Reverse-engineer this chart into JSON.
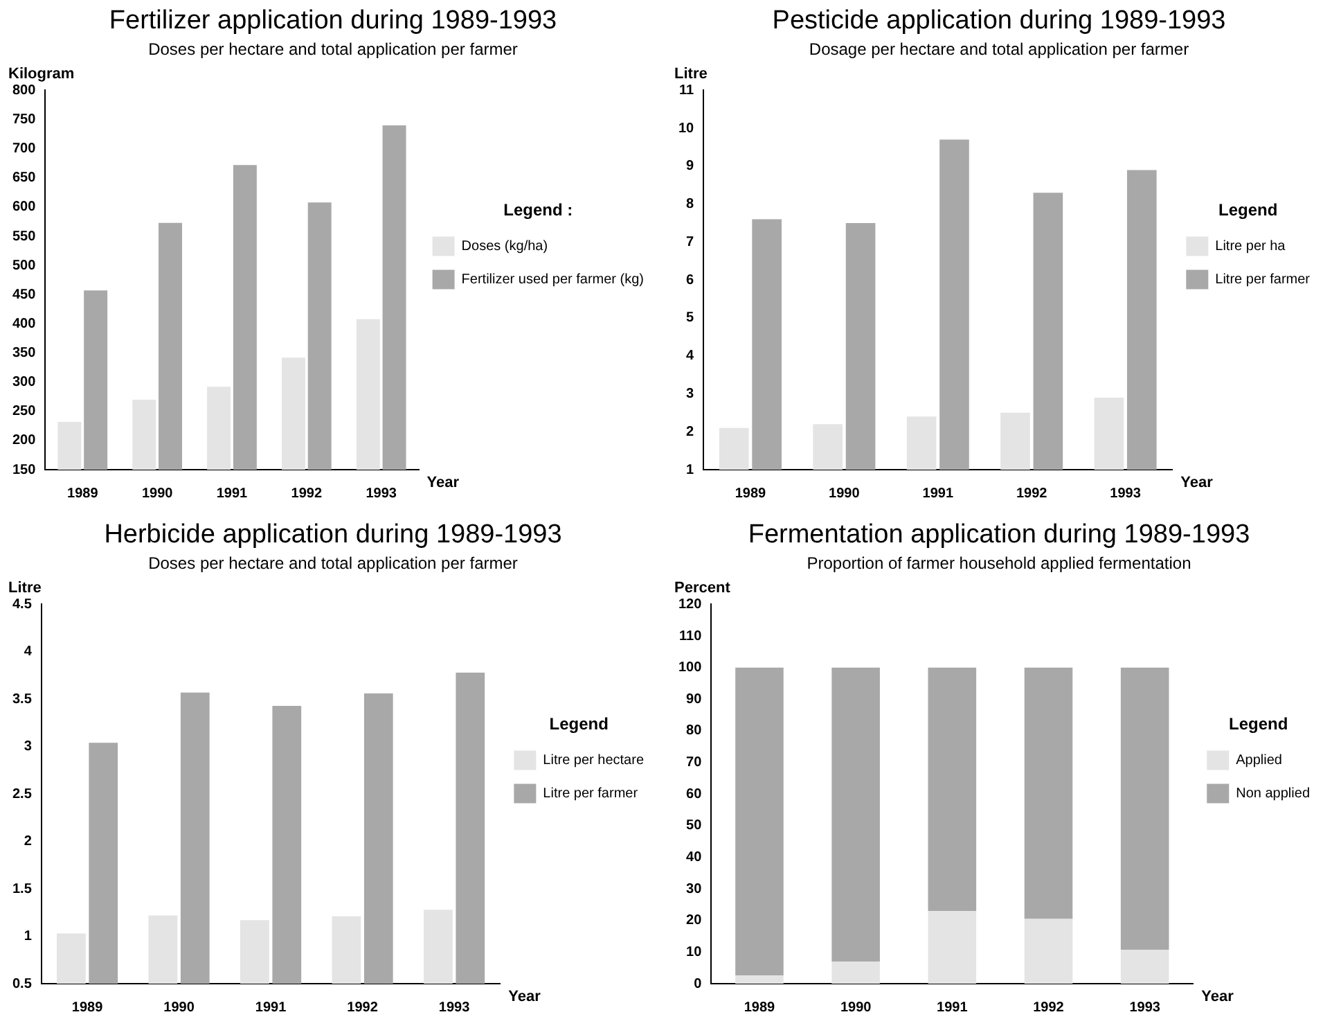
{
  "chart_data": [
    {
      "type": "bar",
      "title": "Fertilizer application during 1989-1993",
      "subtitle": "Doses per hectare and total application per farmer",
      "xlabel": "Year",
      "ylabel": "Kilogram",
      "legend_title": "Legend :",
      "legend": "right",
      "categories": [
        "1989",
        "1990",
        "1991",
        "1992",
        "1993"
      ],
      "series": [
        {
          "name": "Doses (kg/ha)",
          "color": "#e4e4e4",
          "values": [
            232,
            270,
            292,
            342,
            408
          ]
        },
        {
          "name": "Fertilizer used per farmer (kg)",
          "color": "#a8a8a8",
          "values": [
            457,
            573,
            672,
            608,
            740
          ]
        }
      ],
      "ylim": [
        150,
        800
      ],
      "yticks": [
        150,
        200,
        250,
        300,
        350,
        400,
        450,
        500,
        550,
        600,
        650,
        700,
        750,
        800
      ]
    },
    {
      "type": "bar",
      "title": "Pesticide application during 1989-1993",
      "subtitle": "Dosage per hectare and total application per farmer",
      "xlabel": "Year",
      "ylabel": "Litre",
      "legend_title": "Legend",
      "legend": "right",
      "categories": [
        "1989",
        "1990",
        "1991",
        "1992",
        "1993"
      ],
      "series": [
        {
          "name": "Litre per ha",
          "color": "#e4e4e4",
          "values": [
            2.1,
            2.2,
            2.4,
            2.5,
            2.9
          ]
        },
        {
          "name": "Litre per farmer",
          "color": "#a8a8a8",
          "values": [
            7.6,
            7.5,
            9.7,
            8.3,
            8.9
          ]
        }
      ],
      "ylim": [
        1,
        11
      ],
      "yticks": [
        1,
        2,
        3,
        4,
        5,
        6,
        7,
        8,
        9,
        10,
        11
      ]
    },
    {
      "type": "bar",
      "title": "Herbicide application during 1989-1993",
      "subtitle": "Doses per hectare and total application per farmer",
      "xlabel": "Year",
      "ylabel": "Litre",
      "legend_title": "Legend",
      "legend": "right",
      "categories": [
        "1989",
        "1990",
        "1991",
        "1992",
        "1993"
      ],
      "series": [
        {
          "name": "Litre per hectare",
          "color": "#e4e4e4",
          "values": [
            1.03,
            1.22,
            1.17,
            1.21,
            1.28
          ]
        },
        {
          "name": "Litre per farmer",
          "color": "#a8a8a8",
          "values": [
            3.04,
            3.57,
            3.43,
            3.56,
            3.78
          ]
        }
      ],
      "ylim": [
        0.5,
        4.5
      ],
      "yticks": [
        0.5,
        1,
        1.5,
        2,
        2.5,
        3,
        3.5,
        4,
        4.5
      ]
    },
    {
      "type": "bar",
      "title": "Fermentation application during 1989-1993",
      "subtitle": "Proportion of farmer household applied fermentation",
      "xlabel": "Year",
      "ylabel": "Percent",
      "legend_title": "Legend",
      "legend": "right",
      "stacked": true,
      "categories": [
        "1989",
        "1990",
        "1991",
        "1992",
        "1993"
      ],
      "series": [
        {
          "name": "Applied",
          "color": "#e4e4e4",
          "values": [
            2.6,
            7,
            23,
            20.5,
            10.7
          ]
        },
        {
          "name": "Non applied",
          "color": "#a8a8a8",
          "values": [
            97.4,
            93,
            77,
            79.5,
            89.3
          ]
        }
      ],
      "ylim": [
        0,
        120
      ],
      "yticks": [
        0,
        10,
        20,
        30,
        40,
        50,
        60,
        70,
        80,
        90,
        100,
        110,
        120
      ]
    }
  ]
}
